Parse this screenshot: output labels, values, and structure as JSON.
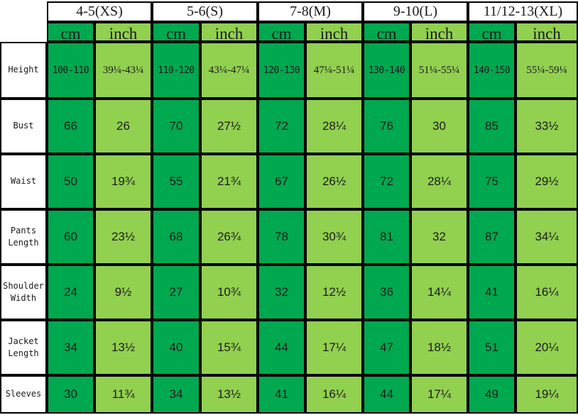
{
  "colors": {
    "cm": "#00a84f",
    "inch": "#92d050",
    "border": "#000000"
  },
  "sizes": [
    "4-5(XS)",
    "5-6(S)",
    "7-8(M)",
    "9-10(L)",
    "11/12-13(XL)"
  ],
  "units": {
    "cm": "cm",
    "inch": "inch"
  },
  "rows": [
    {
      "label": "Height",
      "values": [
        "100-110",
        "39¼-43¼",
        "110-120",
        "43¼-47¼",
        "120-130",
        "47¼-51¼",
        "130-140",
        "51¼-55¼",
        "140-150",
        "55¼-59¼"
      ]
    },
    {
      "label": "Bust",
      "values": [
        "66",
        "26",
        "70",
        "27½",
        "72",
        "28¼",
        "76",
        "30",
        "85",
        "33½"
      ]
    },
    {
      "label": "Waist",
      "values": [
        "50",
        "19¾",
        "55",
        "21¾",
        "67",
        "26½",
        "72",
        "28¼",
        "75",
        "29½"
      ]
    },
    {
      "label": "Pants\nLength",
      "values": [
        "60",
        "23½",
        "68",
        "26¾",
        "78",
        "30¾",
        "81",
        "32",
        "87",
        "34¼"
      ]
    },
    {
      "label": "Shoulder\nWidth",
      "values": [
        "24",
        "9½",
        "27",
        "10¾",
        "32",
        "12½",
        "36",
        "14¼",
        "41",
        "16¼"
      ]
    },
    {
      "label": "Jacket\nLength",
      "values": [
        "34",
        "13½",
        "40",
        "15¾",
        "44",
        "17¼",
        "47",
        "18½",
        "51",
        "20¼"
      ]
    },
    {
      "label": "Sleeves",
      "values": [
        "30",
        "11¾",
        "34",
        "13½",
        "41",
        "16¼",
        "44",
        "17¼",
        "49",
        "19¼"
      ]
    }
  ]
}
